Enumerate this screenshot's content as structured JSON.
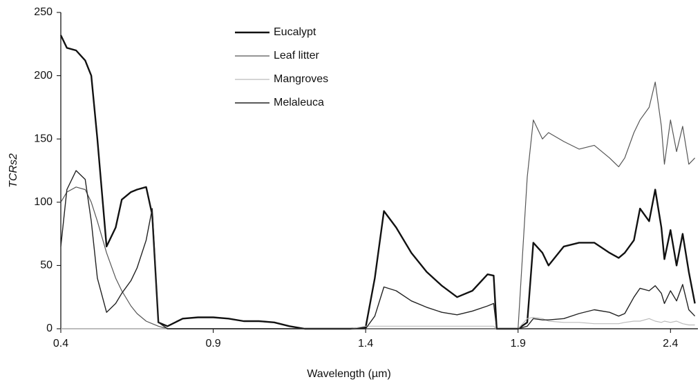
{
  "chart_data": {
    "type": "line",
    "x_label": "Wavelength (µm)",
    "y_label": "TCRs2",
    "x": [
      0.4,
      0.42,
      0.45,
      0.48,
      0.5,
      0.52,
      0.55,
      0.58,
      0.6,
      0.63,
      0.65,
      0.68,
      0.7,
      0.72,
      0.75,
      0.8,
      0.85,
      0.9,
      0.95,
      1.0,
      1.05,
      1.1,
      1.15,
      1.2,
      1.3,
      1.35,
      1.4,
      1.43,
      1.46,
      1.5,
      1.55,
      1.6,
      1.65,
      1.7,
      1.75,
      1.8,
      1.82,
      1.83,
      1.9,
      1.93,
      1.95,
      1.98,
      2.0,
      2.05,
      2.1,
      2.15,
      2.2,
      2.23,
      2.25,
      2.28,
      2.3,
      2.33,
      2.35,
      2.37,
      2.38,
      2.4,
      2.42,
      2.44,
      2.46,
      2.48
    ],
    "series": [
      {
        "name": "Eucalypt",
        "color": "#111111",
        "values": [
          232,
          222,
          220,
          212,
          200,
          150,
          65,
          80,
          102,
          108,
          110,
          112,
          90,
          5,
          2,
          8,
          9,
          9,
          8,
          6,
          6,
          5,
          2,
          0,
          0,
          0,
          1,
          40,
          93,
          80,
          60,
          45,
          34,
          25,
          30,
          43,
          42,
          0,
          0,
          5,
          68,
          60,
          50,
          65,
          68,
          68,
          60,
          56,
          60,
          70,
          95,
          85,
          110,
          80,
          55,
          78,
          50,
          75,
          45,
          20
        ]
      },
      {
        "name": "Leaf litter",
        "color": "#555555",
        "values": [
          100,
          108,
          112,
          110,
          100,
          85,
          60,
          40,
          30,
          18,
          12,
          6,
          4,
          2,
          0,
          0,
          0,
          0,
          0,
          0,
          0,
          0,
          0,
          0,
          0,
          0,
          0,
          0,
          0,
          0,
          0,
          0,
          0,
          0,
          0,
          0,
          0,
          0,
          0,
          120,
          165,
          150,
          155,
          148,
          142,
          145,
          135,
          128,
          135,
          155,
          165,
          175,
          195,
          160,
          130,
          165,
          140,
          160,
          130,
          135
        ]
      },
      {
        "name": "Mangroves",
        "color": "#bbbbbb",
        "values": [
          0,
          0,
          0,
          0,
          0,
          0,
          0,
          0,
          0,
          0,
          0,
          0,
          0,
          0,
          0,
          0,
          0,
          0,
          0,
          0,
          0,
          0,
          0,
          0,
          0,
          0,
          2,
          2,
          2,
          2,
          2,
          2,
          2,
          2,
          2,
          2,
          2,
          0,
          0,
          8,
          9,
          8,
          6,
          5,
          5,
          4,
          4,
          4,
          5,
          6,
          6,
          8,
          6,
          5,
          6,
          5,
          6,
          4,
          3,
          3
        ]
      },
      {
        "name": "Melaleuca",
        "color": "#222222",
        "values": [
          65,
          110,
          125,
          118,
          85,
          40,
          13,
          20,
          28,
          38,
          48,
          70,
          95,
          5,
          0,
          0,
          0,
          0,
          0,
          0,
          0,
          0,
          0,
          0,
          0,
          0,
          0,
          10,
          33,
          30,
          22,
          17,
          13,
          11,
          14,
          18,
          20,
          0,
          0,
          2,
          8,
          7,
          7,
          8,
          12,
          15,
          13,
          10,
          12,
          25,
          32,
          30,
          34,
          28,
          20,
          30,
          22,
          35,
          15,
          10
        ]
      }
    ],
    "xlim": [
      0.4,
      2.49
    ],
    "xticks": [
      0.4,
      0.9,
      1.4,
      1.9,
      2.4
    ],
    "ylim": [
      0,
      250
    ],
    "yticks": [
      0,
      50,
      100,
      150,
      200,
      250
    ],
    "legend": "upper center"
  }
}
